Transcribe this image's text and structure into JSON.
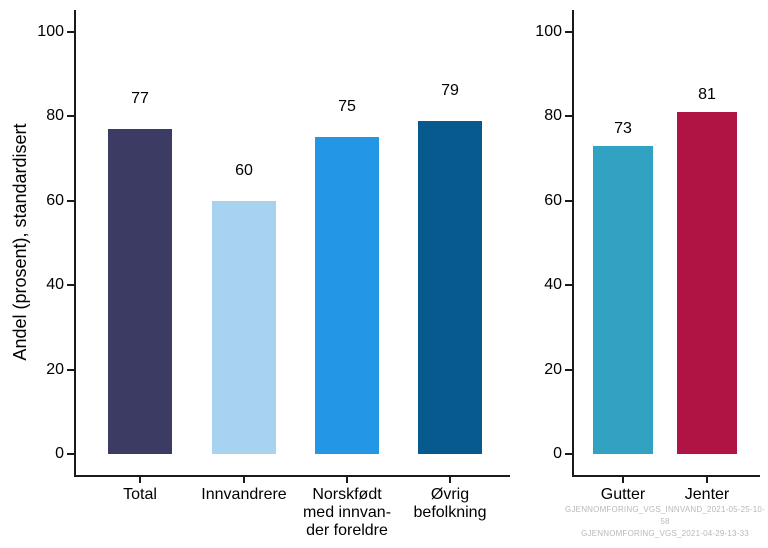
{
  "figure": {
    "background": "#ffffff",
    "axis_color": "#1a1a1a",
    "text_color": "#000000",
    "ylabel": "Andel (prosent), standardisert",
    "watermark": {
      "lines": [
        "GJENNOMFORING_VGS_INNVAND_2021-05-25-10-58",
        "GJENNOMFORING_VGS_2021-04-29-13-33"
      ],
      "color": "#b9b9b9"
    }
  },
  "chart_data": [
    {
      "type": "bar",
      "panel": "left",
      "title": "",
      "xlabel": "",
      "ylabel": "Andel (prosent), standardisert",
      "categories": [
        "Total",
        "Innvandrere",
        "Norskfødt\nmed innvan-\nder foreldre",
        "Øvrig\nbefolkning"
      ],
      "values": [
        77,
        60,
        75,
        79
      ],
      "value_labels": [
        "77",
        "60",
        "75",
        "79"
      ],
      "bar_colors": [
        "#3b3b63",
        "#a8d3f0",
        "#2397e4",
        "#075a8d"
      ],
      "ylim": [
        0,
        100
      ],
      "yticks": [
        0,
        20,
        40,
        60,
        80,
        100
      ],
      "grid": false,
      "legend": null
    },
    {
      "type": "bar",
      "panel": "right",
      "title": "",
      "xlabel": "",
      "ylabel": "",
      "categories": [
        "Gutter",
        "Jenter"
      ],
      "values": [
        73,
        81
      ],
      "value_labels": [
        "73",
        "81"
      ],
      "bar_colors": [
        "#31a2c1",
        "#b01445"
      ],
      "ylim": [
        0,
        100
      ],
      "yticks": [
        0,
        20,
        40,
        60,
        80,
        100
      ],
      "grid": false,
      "legend": null
    }
  ]
}
